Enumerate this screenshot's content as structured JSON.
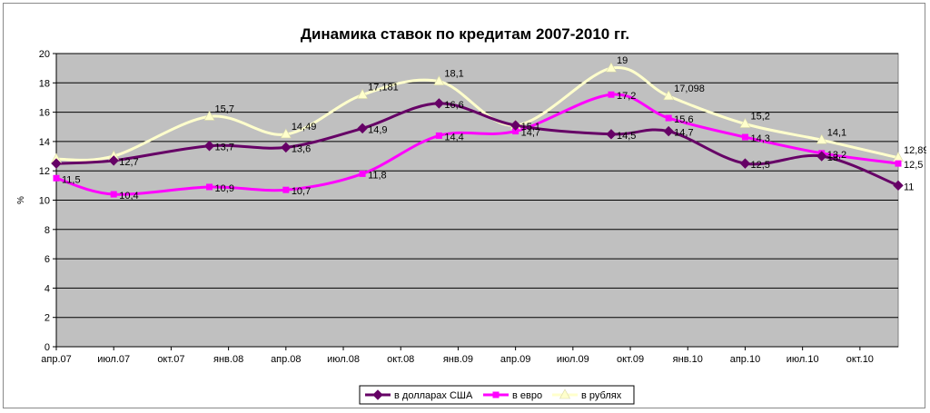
{
  "chart_data": {
    "type": "line",
    "title": "Динамика ставок по кредитам 2007-2010 гг.",
    "ylabel": "%",
    "xlabel": "",
    "ylim": [
      0,
      20
    ],
    "yticks": [
      0,
      2,
      4,
      6,
      8,
      10,
      12,
      14,
      16,
      18,
      20
    ],
    "grid": true,
    "legend_position": "bottom",
    "x_tick_labels": [
      "апр.07",
      "июл.07",
      "окт.07",
      "янв.08",
      "апр.08",
      "июл.08",
      "окт.08",
      "янв.09",
      "апр.09",
      "июл.09",
      "окт.09",
      "янв.10",
      "апр.10",
      "июл.10",
      "окт.10"
    ],
    "x_domain": [
      "2007-04",
      "2010-12"
    ],
    "colors": {
      "plot_background": "#c0c0c0",
      "gridline": "#000000",
      "usd": "#660066",
      "eur": "#ff00ff",
      "rub": "#ffffcc"
    },
    "series": [
      {
        "name": "в долларах США",
        "marker": "diamond",
        "color": "#660066",
        "points": [
          {
            "x": "2007-04",
            "y": 12.5,
            "label": ""
          },
          {
            "x": "2007-07",
            "y": 12.7,
            "label": "12,7"
          },
          {
            "x": "2007-12",
            "y": 13.7,
            "label": "13,7"
          },
          {
            "x": "2008-04",
            "y": 13.6,
            "label": "13,6"
          },
          {
            "x": "2008-08",
            "y": 14.9,
            "label": "14,9"
          },
          {
            "x": "2008-12",
            "y": 16.6,
            "label": "16,6"
          },
          {
            "x": "2009-04",
            "y": 15.1,
            "label": "15,1"
          },
          {
            "x": "2009-09",
            "y": 14.5,
            "label": "14,5"
          },
          {
            "x": "2009-12",
            "y": 14.7,
            "label": "14,7"
          },
          {
            "x": "2010-04",
            "y": 12.5,
            "label": "12,5"
          },
          {
            "x": "2010-08",
            "y": 13.0,
            "label": "13"
          },
          {
            "x": "2010-12",
            "y": 11.0,
            "label": "11"
          }
        ]
      },
      {
        "name": "в евро",
        "marker": "square",
        "color": "#ff00ff",
        "points": [
          {
            "x": "2007-04",
            "y": 11.5,
            "label": "11,5"
          },
          {
            "x": "2007-07",
            "y": 10.4,
            "label": "10,4"
          },
          {
            "x": "2007-12",
            "y": 10.9,
            "label": "10,9"
          },
          {
            "x": "2008-04",
            "y": 10.7,
            "label": "10,7"
          },
          {
            "x": "2008-08",
            "y": 11.8,
            "label": "11,8"
          },
          {
            "x": "2008-12",
            "y": 14.4,
            "label": "14,4"
          },
          {
            "x": "2009-04",
            "y": 14.7,
            "label": "14,7"
          },
          {
            "x": "2009-09",
            "y": 17.2,
            "label": "17,2"
          },
          {
            "x": "2009-12",
            "y": 15.6,
            "label": "15,6"
          },
          {
            "x": "2010-04",
            "y": 14.3,
            "label": "14,3"
          },
          {
            "x": "2010-08",
            "y": 13.2,
            "label": "13,2"
          },
          {
            "x": "2010-12",
            "y": 12.5,
            "label": "12,5"
          }
        ]
      },
      {
        "name": "в рублях",
        "marker": "triangle",
        "color": "#ffffcc",
        "points": [
          {
            "x": "2007-04",
            "y": 12.8,
            "label": ""
          },
          {
            "x": "2007-07",
            "y": 13.0,
            "label": ""
          },
          {
            "x": "2007-12",
            "y": 15.7,
            "label": "15,7"
          },
          {
            "x": "2008-04",
            "y": 14.49,
            "label": "14,49"
          },
          {
            "x": "2008-08",
            "y": 17.181,
            "label": "17,181"
          },
          {
            "x": "2008-12",
            "y": 18.1,
            "label": "18,1"
          },
          {
            "x": "2009-04",
            "y": 15.1,
            "label": ""
          },
          {
            "x": "2009-09",
            "y": 19.0,
            "label": "19"
          },
          {
            "x": "2009-12",
            "y": 17.098,
            "label": "17,098"
          },
          {
            "x": "2010-04",
            "y": 15.2,
            "label": "15,2"
          },
          {
            "x": "2010-08",
            "y": 14.1,
            "label": "14,1"
          },
          {
            "x": "2010-12",
            "y": 12.89,
            "label": "12,89"
          }
        ]
      }
    ]
  }
}
